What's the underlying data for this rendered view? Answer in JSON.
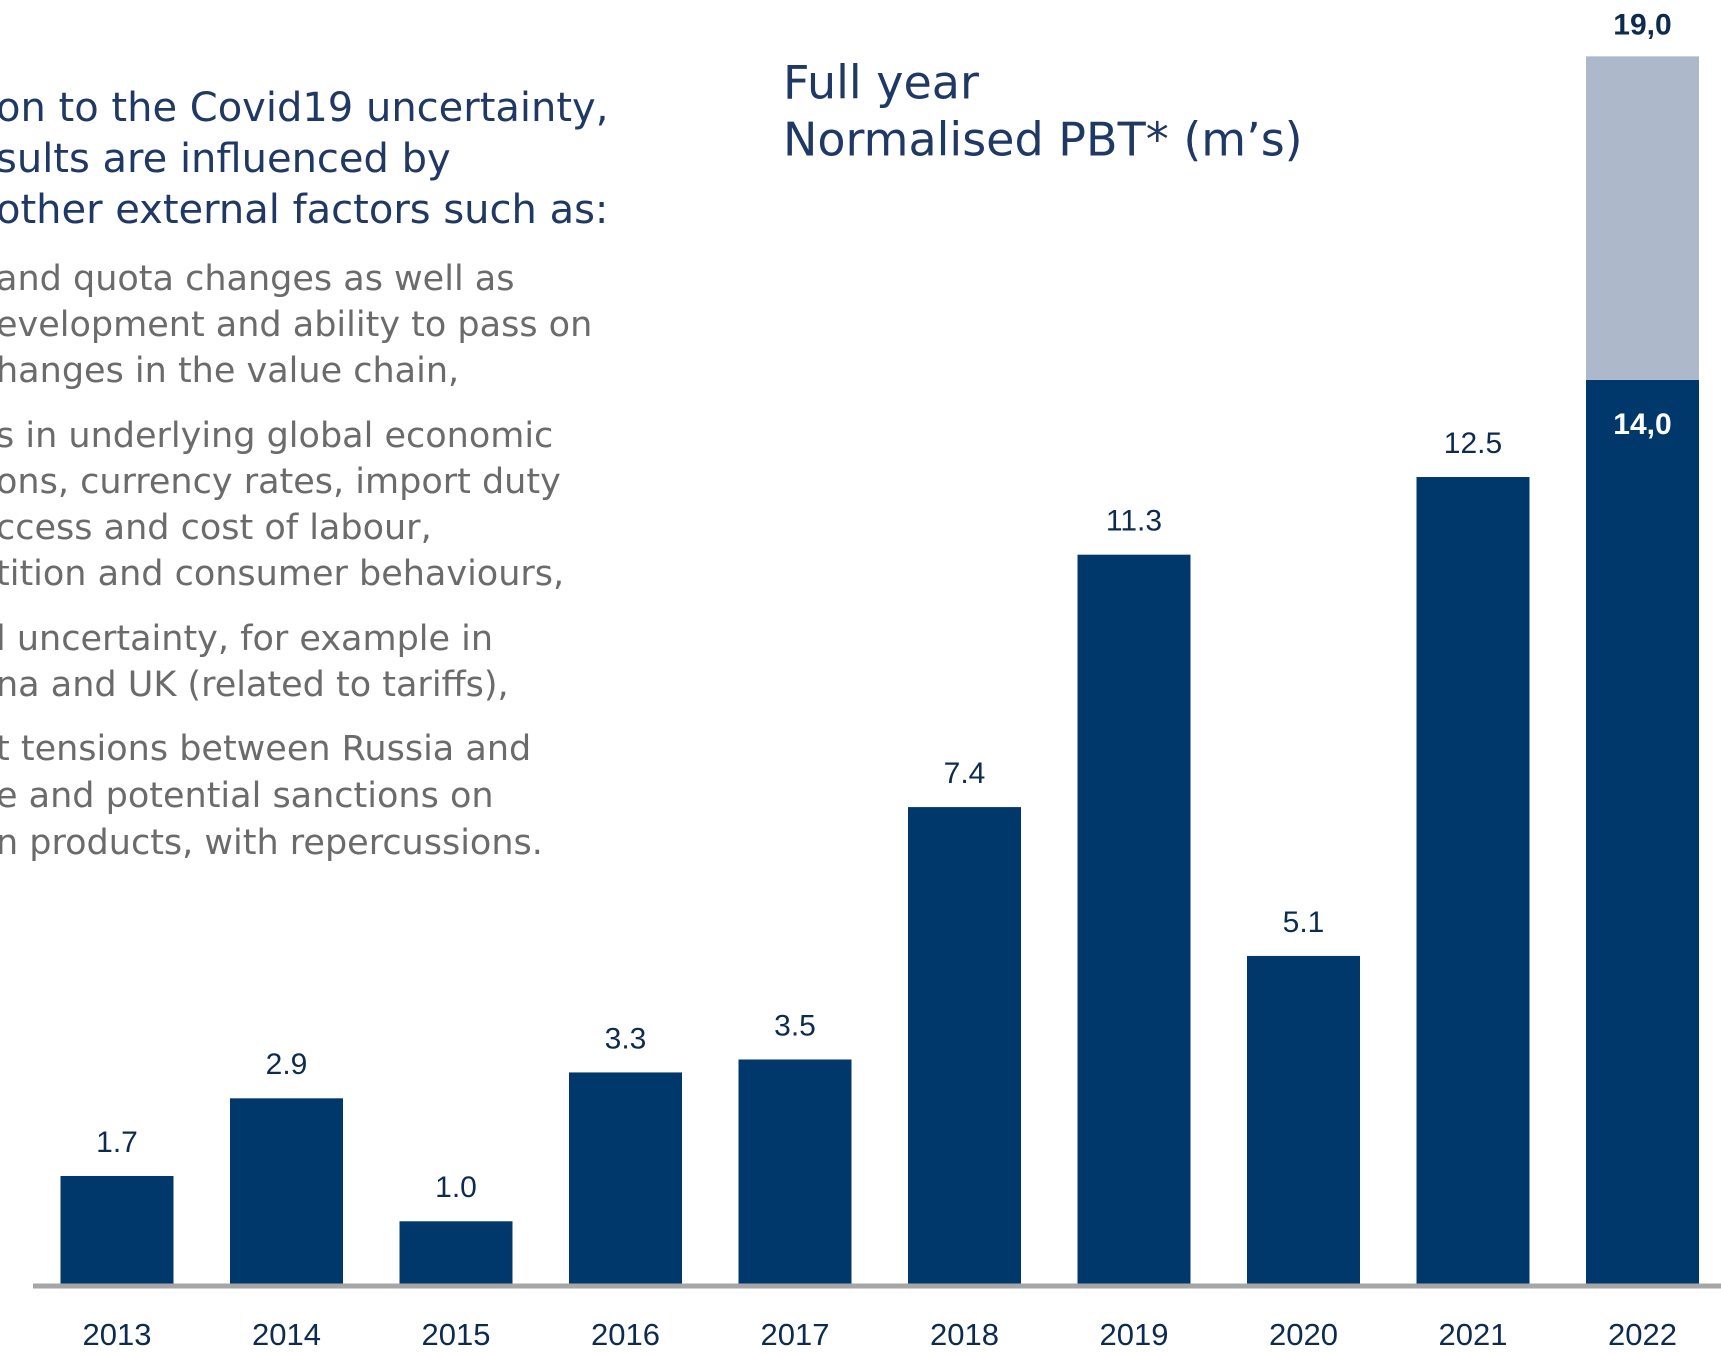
{
  "text_block": {
    "heading": [
      "on to the Covid19 uncertainty,",
      "sults are influenced by",
      "other external factors such as:"
    ],
    "bullets": [
      [
        "and quota changes as well as",
        "evelopment and ability to pass on",
        "hanges in the value chain,"
      ],
      [
        "s in underlying global economic",
        "ons, currency rates, import duty",
        "ccess and cost of labour,",
        "tition and consumer behaviours,"
      ],
      [
        "l uncertainty, for example in",
        "na and UK (related to tariffs),"
      ],
      [
        "t tensions between Russia and",
        "e and potential sanctions on",
        "n products, with repercussions."
      ]
    ]
  },
  "chart_data": {
    "type": "bar",
    "title": [
      "Full year",
      "Normalised PBT* (m’s)"
    ],
    "categories": [
      "2013",
      "2014",
      "2015",
      "2016",
      "2017",
      "2018",
      "2019",
      "2020",
      "2021",
      "2022"
    ],
    "series": [
      {
        "color": "#00386c",
        "values": [
          1.7,
          2.9,
          1.0,
          3.3,
          3.5,
          7.4,
          11.3,
          5.1,
          12.5,
          14.0
        ],
        "value_labels": [
          "1.7",
          "2.9",
          "1.0",
          "3.3",
          "3.5",
          "7.4",
          "11.3",
          "5.1",
          "12.5",
          "14,0"
        ]
      },
      {
        "color": "#adb9ca",
        "values": [
          null,
          null,
          null,
          null,
          null,
          null,
          null,
          null,
          null,
          5.0
        ]
      }
    ],
    "totals": [
      null,
      null,
      null,
      null,
      null,
      null,
      null,
      null,
      null,
      19.0
    ],
    "total_labels": [
      null,
      null,
      null,
      null,
      null,
      null,
      null,
      null,
      null,
      "19,0"
    ],
    "ylim": [
      0,
      19.5
    ]
  }
}
